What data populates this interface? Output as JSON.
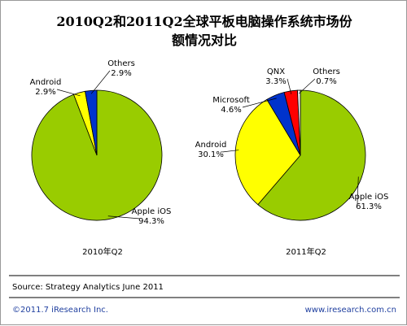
{
  "title": "2010Q2和2011Q2全球平板电脑操作系统市场份额情况对比",
  "chart_data": [
    {
      "type": "pie",
      "title": "2010年Q2",
      "categories": [
        "Apple iOS",
        "Android",
        "Others"
      ],
      "values": [
        94.3,
        2.9,
        2.9
      ],
      "value_labels": [
        "94.3%",
        "2.9%",
        "2.9%"
      ],
      "colors": [
        "#99cc00",
        "#ffff00",
        "#0033cc"
      ]
    },
    {
      "type": "pie",
      "title": "2011年Q2",
      "categories": [
        "Apple iOS",
        "Android",
        "Microsoft",
        "QNX",
        "Others"
      ],
      "values": [
        61.3,
        30.1,
        4.6,
        3.3,
        0.7
      ],
      "value_labels": [
        "61.3%",
        "30.1%",
        "4.6%",
        "3.3%",
        "0.7%"
      ],
      "colors": [
        "#99cc00",
        "#ffff00",
        "#0033cc",
        "#ff0000",
        "#f2f2f2"
      ]
    }
  ],
  "source": "Source: Strategy Analytics June 2011",
  "footer": {
    "left": "©2011.7 iResearch Inc.",
    "right": "www.iresearch.com.cn"
  }
}
